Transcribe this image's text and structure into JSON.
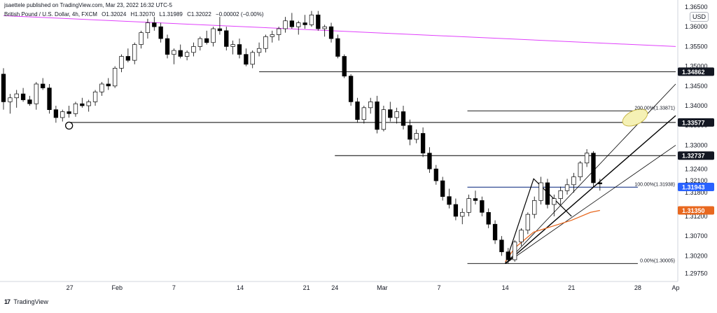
{
  "header": {
    "published_by": "jsaettele published on TradingView.com, Mar 23, 2022 16:32 UTC-5",
    "symbol": "British Pound / U.S. Dollar, 4h, FXCM",
    "open": "O1.32024",
    "high": "H1.32070",
    "low": "L1.31989",
    "close": "C1.32022",
    "change": "−0.00002 (−0.00%)"
  },
  "currency_label": "USD",
  "brand": {
    "logo": "17",
    "name": "TradingView"
  },
  "colors": {
    "bull": "#ffffff",
    "bear": "#000000",
    "pink_line": "#e040fb",
    "blue_line": "#1e3a8a",
    "ma_line": "#e8681f",
    "ellipse_fill": "#f5f1b5",
    "ellipse_stroke": "#c9b84a",
    "label_dark": "#131722",
    "label_blue": "#2962ff",
    "label_orange": "#e8681f"
  },
  "chart_data": {
    "type": "candlestick",
    "timeframe": "4h",
    "x_axis": {
      "ticks": [
        "27",
        "Feb",
        "7",
        "14",
        "21",
        "24",
        "Mar",
        "7",
        "14",
        "21",
        "28",
        "Ap"
      ],
      "tick_dates": [
        "2022-01-27",
        "2022-02-01",
        "2022-02-07",
        "2022-02-14",
        "2022-02-21",
        "2022-02-24",
        "2022-03-01",
        "2022-03-07",
        "2022-03-14",
        "2022-03-21",
        "2022-03-28",
        "2022-04-01"
      ]
    },
    "y_axis": {
      "ylim": [
        1.2955,
        1.365
      ],
      "tick_labels": [
        "1.36500",
        "1.36000",
        "1.35500",
        "1.35000",
        "1.34500",
        "1.34000",
        "1.33500",
        "1.33000",
        "1.32400",
        "1.32100",
        "1.31800",
        "1.31200",
        "1.30700",
        "1.30200",
        "1.29750"
      ],
      "tick_values": [
        1.365,
        1.36,
        1.355,
        1.35,
        1.345,
        1.34,
        1.335,
        1.33,
        1.324,
        1.321,
        1.318,
        1.312,
        1.307,
        1.302,
        1.2975
      ]
    },
    "price_labels": [
      {
        "text": "1.34862",
        "value": 1.34862,
        "style": "dark"
      },
      {
        "text": "1.33577",
        "value": 1.33577,
        "style": "dark"
      },
      {
        "text": "1.32737",
        "value": 1.32737,
        "style": "dark"
      },
      {
        "text": "1.31943",
        "value": 1.31943,
        "style": "blue"
      },
      {
        "text": "1.31350",
        "value": 1.3135,
        "style": "orange"
      }
    ],
    "fib_labels": [
      {
        "text": "200.00%(1.33871)",
        "value": 1.33871
      },
      {
        "text": "100.00%(1.31938)",
        "value": 1.31938
      },
      {
        "text": "0.00%(1.30005)",
        "value": 1.30005
      }
    ],
    "horizontal_levels": [
      {
        "value": 1.33577,
        "from": "2022-01-27",
        "to": "2022-04-01"
      },
      {
        "value": 1.34862,
        "from": "2022-02-16",
        "to": "2022-04-01"
      },
      {
        "value": 1.32737,
        "from": "2022-02-24",
        "to": "2022-04-01"
      },
      {
        "value": 1.33871,
        "from": "2022-03-10",
        "to": "2022-03-28"
      },
      {
        "value": 1.31938,
        "from": "2022-03-10",
        "to": "2022-03-28"
      },
      {
        "value": 1.30005,
        "from": "2022-03-10",
        "to": "2022-03-28"
      }
    ],
    "trendline_pink": [
      [
        "2022-01-20",
        1.3628
      ],
      [
        "2022-04-01",
        1.355
      ]
    ],
    "channel_upper": [
      [
        "2022-03-14",
        1.3
      ],
      [
        "2022-04-01",
        1.3455
      ]
    ],
    "channel_lower": [
      [
        "2022-03-14",
        1.3
      ],
      [
        "2022-04-01",
        1.33
      ]
    ],
    "median_line": [
      [
        "2022-03-14",
        1.3
      ],
      [
        "2022-04-01",
        1.3375
      ]
    ],
    "pitchfork_handle": [
      [
        "2022-03-14",
        1.3
      ],
      [
        "2022-03-17",
        1.3215
      ],
      [
        "2022-03-21",
        1.312
      ]
    ],
    "moving_average": [
      [
        "2022-03-14",
        1.3005
      ],
      [
        "2022-03-15",
        1.304
      ],
      [
        "2022-03-17",
        1.308
      ],
      [
        "2022-03-21",
        1.311
      ],
      [
        "2022-03-23",
        1.313
      ],
      [
        "2022-03-24",
        1.3135
      ]
    ],
    "ellipse_target": {
      "date": "2022-03-28",
      "value": 1.337
    },
    "swing_marker": {
      "date": "2022-01-27",
      "value": 1.3355
    },
    "candles_ohlc": [
      [
        1.348,
        1.3495,
        1.339,
        1.341
      ],
      [
        1.341,
        1.343,
        1.338,
        1.342
      ],
      [
        1.342,
        1.344,
        1.3395,
        1.343
      ],
      [
        1.343,
        1.3445,
        1.341,
        1.3415
      ],
      [
        1.3415,
        1.3425,
        1.34,
        1.3405
      ],
      [
        1.3405,
        1.346,
        1.339,
        1.3455
      ],
      [
        1.3455,
        1.347,
        1.344,
        1.3445
      ],
      [
        1.3445,
        1.3455,
        1.338,
        1.339
      ],
      [
        1.339,
        1.34,
        1.3357,
        1.337
      ],
      [
        1.337,
        1.339,
        1.336,
        1.3385
      ],
      [
        1.3385,
        1.34,
        1.337,
        1.338
      ],
      [
        1.338,
        1.341,
        1.3372,
        1.3405
      ],
      [
        1.3405,
        1.342,
        1.3395,
        1.34
      ],
      [
        1.34,
        1.3415,
        1.3385,
        1.341
      ],
      [
        1.341,
        1.344,
        1.34,
        1.3435
      ],
      [
        1.3435,
        1.346,
        1.3425,
        1.3455
      ],
      [
        1.3455,
        1.347,
        1.344,
        1.345
      ],
      [
        1.345,
        1.35,
        1.3445,
        1.3495
      ],
      [
        1.3495,
        1.353,
        1.3485,
        1.3525
      ],
      [
        1.3525,
        1.3545,
        1.351,
        1.3515
      ],
      [
        1.3515,
        1.356,
        1.3505,
        1.3555
      ],
      [
        1.3555,
        1.359,
        1.3545,
        1.3585
      ],
      [
        1.3585,
        1.362,
        1.357,
        1.361
      ],
      [
        1.361,
        1.3625,
        1.359,
        1.36
      ],
      [
        1.36,
        1.361,
        1.356,
        1.357
      ],
      [
        1.357,
        1.358,
        1.352,
        1.353
      ],
      [
        1.353,
        1.3545,
        1.3505,
        1.354
      ],
      [
        1.354,
        1.3555,
        1.352,
        1.3525
      ],
      [
        1.3525,
        1.354,
        1.3515,
        1.3535
      ],
      [
        1.3535,
        1.356,
        1.3525,
        1.355
      ],
      [
        1.355,
        1.3575,
        1.354,
        1.357
      ],
      [
        1.357,
        1.359,
        1.3555,
        1.356
      ],
      [
        1.356,
        1.36,
        1.355,
        1.3595
      ],
      [
        1.3595,
        1.3625,
        1.358,
        1.359
      ],
      [
        1.359,
        1.36,
        1.354,
        1.355
      ],
      [
        1.355,
        1.3565,
        1.353,
        1.3555
      ],
      [
        1.3555,
        1.357,
        1.352,
        1.353
      ],
      [
        1.353,
        1.3545,
        1.35,
        1.3505
      ],
      [
        1.3505,
        1.354,
        1.3495,
        1.3535
      ],
      [
        1.3535,
        1.356,
        1.3525,
        1.3545
      ],
      [
        1.3545,
        1.358,
        1.3535,
        1.3575
      ],
      [
        1.3575,
        1.359,
        1.356,
        1.358
      ],
      [
        1.358,
        1.36,
        1.3565,
        1.3595
      ],
      [
        1.3595,
        1.3625,
        1.3585,
        1.3615
      ],
      [
        1.3615,
        1.3635,
        1.3595,
        1.36
      ],
      [
        1.36,
        1.3615,
        1.358,
        1.361
      ],
      [
        1.361,
        1.363,
        1.3595,
        1.3605
      ],
      [
        1.3605,
        1.364,
        1.36,
        1.363
      ],
      [
        1.363,
        1.364,
        1.359,
        1.3595
      ],
      [
        1.3595,
        1.3605,
        1.3575,
        1.36
      ],
      [
        1.36,
        1.361,
        1.356,
        1.357
      ],
      [
        1.357,
        1.358,
        1.352,
        1.3525
      ],
      [
        1.3525,
        1.353,
        1.347,
        1.3475
      ],
      [
        1.3475,
        1.348,
        1.34,
        1.341
      ],
      [
        1.341,
        1.342,
        1.3357,
        1.3365
      ],
      [
        1.3365,
        1.34,
        1.3355,
        1.3395
      ],
      [
        1.3395,
        1.342,
        1.338,
        1.341
      ],
      [
        1.341,
        1.3425,
        1.333,
        1.334
      ],
      [
        1.334,
        1.34,
        1.3335,
        1.339
      ],
      [
        1.339,
        1.341,
        1.336,
        1.337
      ],
      [
        1.337,
        1.3395,
        1.3355,
        1.3385
      ],
      [
        1.3385,
        1.34,
        1.334,
        1.335
      ],
      [
        1.335,
        1.3365,
        1.33,
        1.3315
      ],
      [
        1.3315,
        1.334,
        1.3305,
        1.333
      ],
      [
        1.333,
        1.3345,
        1.327,
        1.328
      ],
      [
        1.328,
        1.3295,
        1.323,
        1.324
      ],
      [
        1.324,
        1.325,
        1.32,
        1.321
      ],
      [
        1.321,
        1.322,
        1.316,
        1.317
      ],
      [
        1.317,
        1.319,
        1.314,
        1.315
      ],
      [
        1.315,
        1.3165,
        1.311,
        1.312
      ],
      [
        1.312,
        1.314,
        1.31,
        1.313
      ],
      [
        1.313,
        1.3175,
        1.312,
        1.3165
      ],
      [
        1.3165,
        1.3185,
        1.315,
        1.316
      ],
      [
        1.316,
        1.317,
        1.312,
        1.313
      ],
      [
        1.313,
        1.314,
        1.309,
        1.31
      ],
      [
        1.31,
        1.311,
        1.305,
        1.306
      ],
      [
        1.306,
        1.307,
        1.302,
        1.303
      ],
      [
        1.303,
        1.304,
        1.3,
        1.301
      ],
      [
        1.301,
        1.306,
        1.3005,
        1.3055
      ],
      [
        1.3055,
        1.309,
        1.3045,
        1.3085
      ],
      [
        1.3085,
        1.313,
        1.3075,
        1.3125
      ],
      [
        1.3125,
        1.317,
        1.3115,
        1.316
      ],
      [
        1.316,
        1.322,
        1.315,
        1.3205
      ],
      [
        1.3205,
        1.3215,
        1.314,
        1.315
      ],
      [
        1.315,
        1.3175,
        1.312,
        1.3165
      ],
      [
        1.3165,
        1.3195,
        1.315,
        1.3185
      ],
      [
        1.3185,
        1.3215,
        1.3175,
        1.32
      ],
      [
        1.32,
        1.323,
        1.318,
        1.322
      ],
      [
        1.322,
        1.326,
        1.321,
        1.3255
      ],
      [
        1.3255,
        1.329,
        1.3245,
        1.328
      ],
      [
        1.328,
        1.3285,
        1.3195,
        1.3205
      ],
      [
        1.3205,
        1.3215,
        1.3185,
        1.3202
      ]
    ]
  }
}
